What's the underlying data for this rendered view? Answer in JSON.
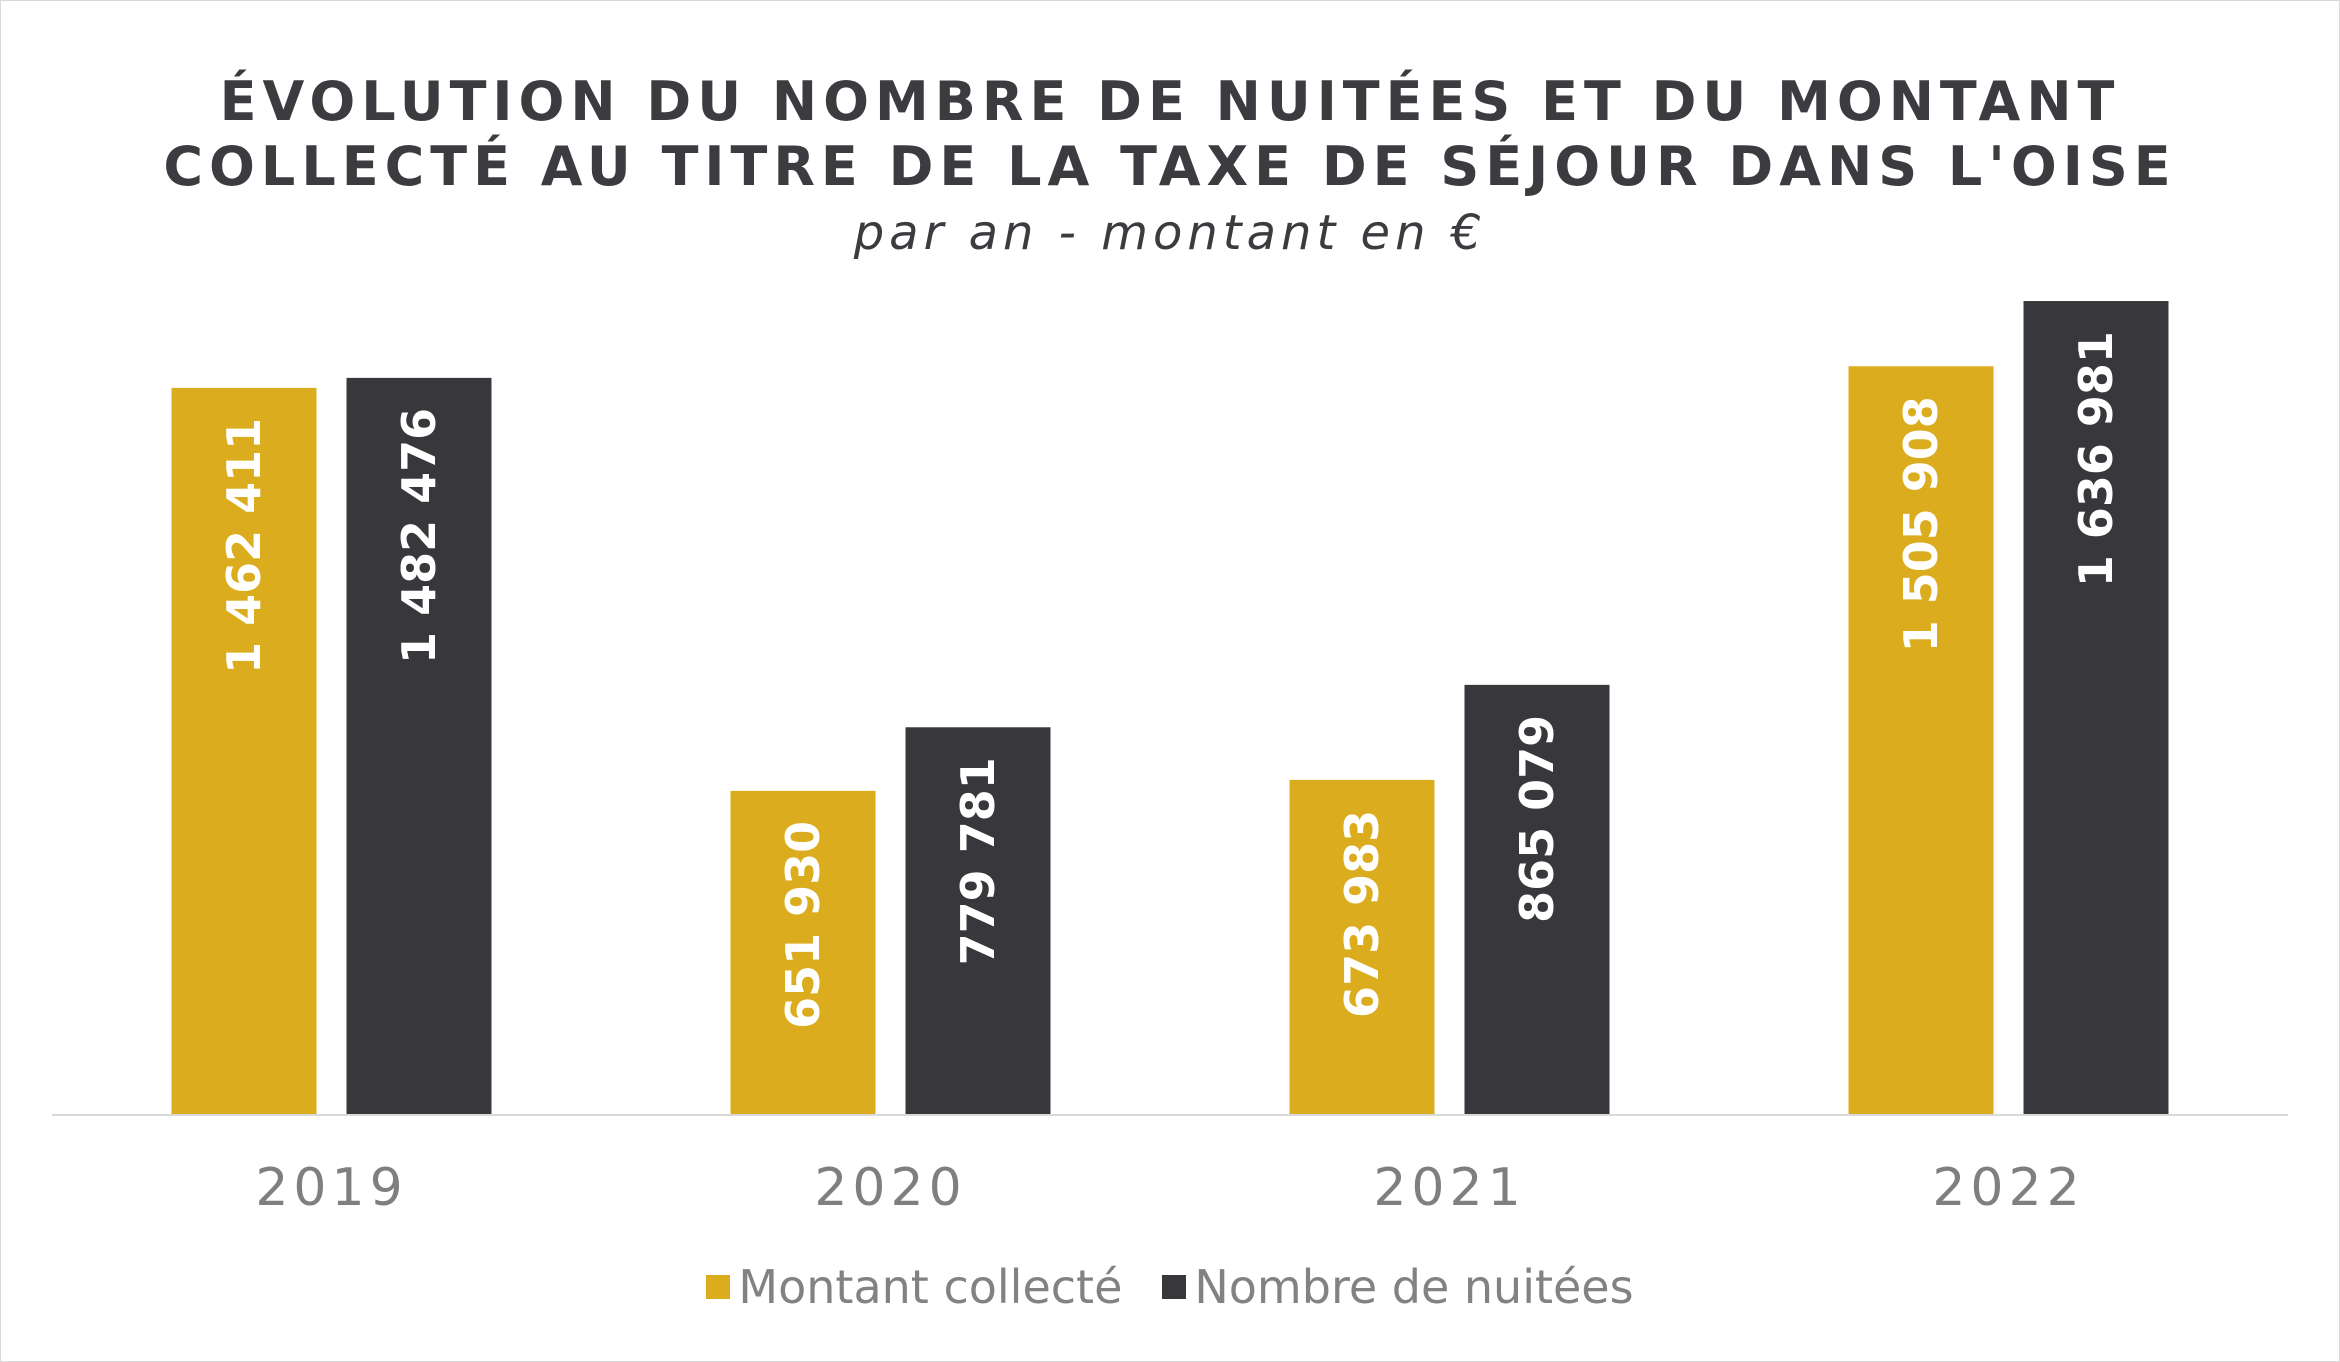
{
  "colors": {
    "montant": "#DBAD1E",
    "nuitees": "#38373B",
    "value_label": "#ffffff",
    "tick_label": "#7f7f7f",
    "axis": "#d9d9d9",
    "title": "#3c3b3f"
  },
  "chart_data": {
    "type": "bar",
    "title": "ÉVOLUTION DU NOMBRE DE NUITÉES ET DU MONTANT COLLECTÉ AU TITRE DE LA TAXE DE SÉJOUR DANS L'OISE",
    "title_lines": [
      "ÉVOLUTION DU NOMBRE DE NUITÉES ET DU MONTANT",
      "COLLECTÉ AU TITRE DE LA TAXE DE SÉJOUR DANS L'OISE"
    ],
    "subtitle": "par an - montant en €",
    "xlabel": "",
    "ylabel": "",
    "categories": [
      "2019",
      "2020",
      "2021",
      "2022"
    ],
    "series": [
      {
        "name": "Montant collecté",
        "values": [
          1462411,
          651930,
          673983,
          1505908
        ],
        "labels": [
          "1 462 411",
          "651 930",
          "673 983",
          "1 505 908"
        ]
      },
      {
        "name": "Nombre de nuitées",
        "values": [
          1482476,
          779781,
          865079,
          1636981
        ],
        "labels": [
          "1 482 476",
          "779 781",
          "865 079",
          "1 636 981"
        ]
      }
    ],
    "ylim": [
      0,
      1800000
    ],
    "grid": false,
    "legend_position": "bottom",
    "data_labels": "inside-rotated"
  }
}
